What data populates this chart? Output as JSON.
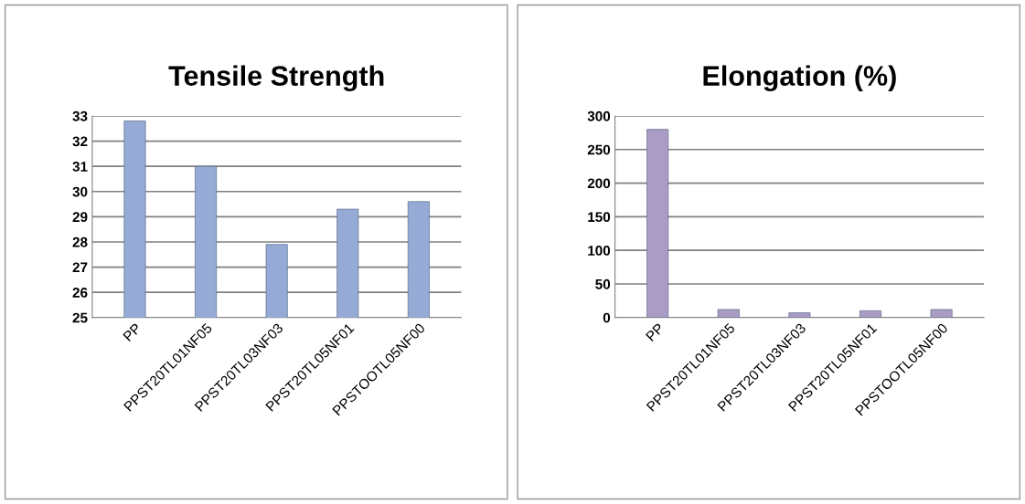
{
  "chart_data": [
    {
      "type": "bar",
      "title": "Tensile Strength",
      "categories": [
        "PP",
        "PPST20TL01NF05",
        "PPST20TL03NF03",
        "PPST20TL05NF01",
        "PPSTOOTL05NF00"
      ],
      "values": [
        32.8,
        31.0,
        27.9,
        29.3,
        29.6
      ],
      "color": "#95abd5",
      "ylim": [
        25,
        33
      ],
      "yticks": [
        25,
        26,
        27,
        28,
        29,
        30,
        31,
        32,
        33
      ],
      "grid": "y"
    },
    {
      "type": "bar",
      "title": "Elongation (%)",
      "categories": [
        "PP",
        "PPST20TL01NF05",
        "PPST20TL03NF03",
        "PPST20TL05NF01",
        "PPSTOOTL05NF00"
      ],
      "values": [
        280,
        12,
        7,
        10,
        12
      ],
      "color": "#aa9cc4",
      "ylim": [
        0,
        300
      ],
      "yticks": [
        0,
        50,
        100,
        150,
        200,
        250,
        300
      ],
      "grid": "y"
    }
  ]
}
